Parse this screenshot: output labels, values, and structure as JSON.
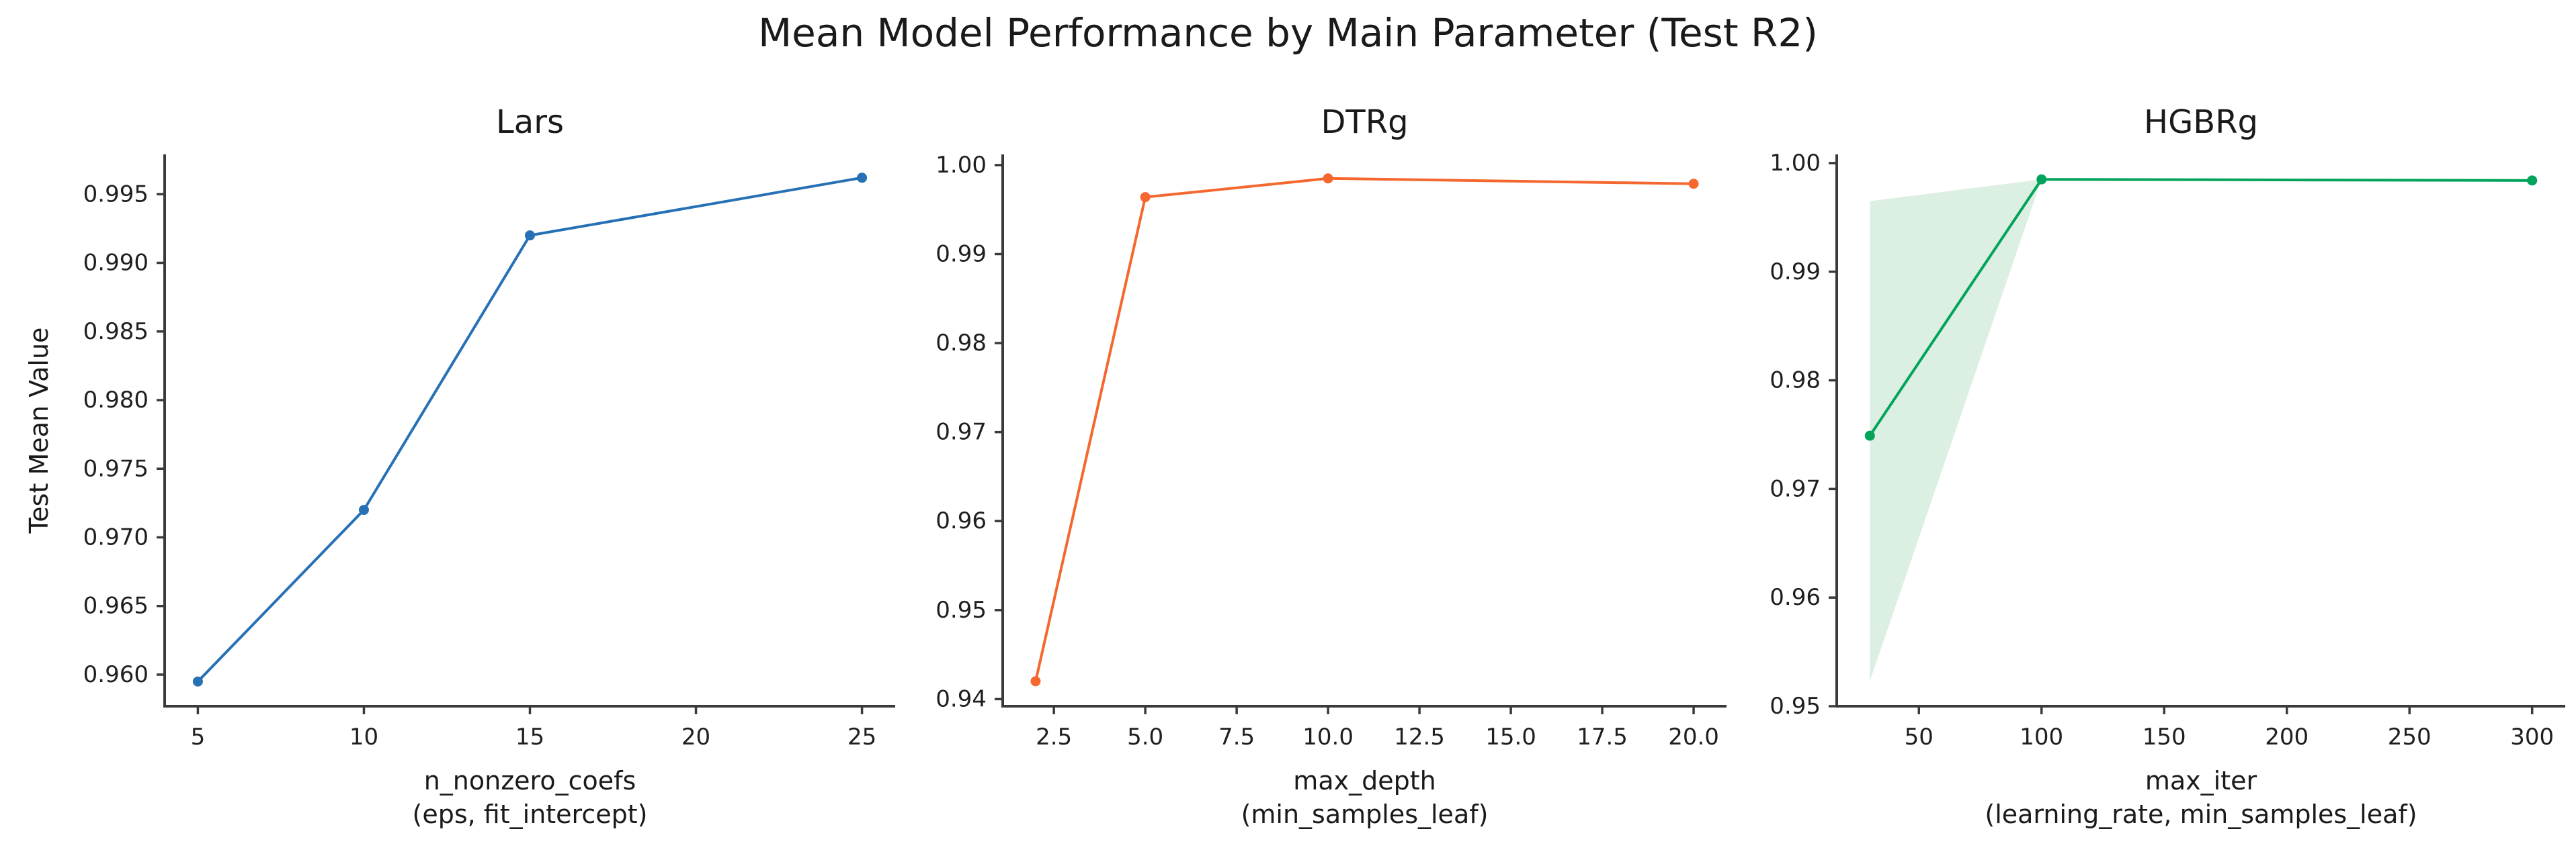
{
  "figure": {
    "suptitle": "Mean Model Performance by Main Parameter (Test R2)",
    "background_color": "#ffffff",
    "text_color": "#1a1a1a",
    "spine_color": "#3a3a3a",
    "grid": "off",
    "legend": "none"
  },
  "chart_data": [
    {
      "type": "line",
      "id": "lars",
      "title": "Lars",
      "color": "#2670b5",
      "x": [
        5,
        10,
        15,
        25
      ],
      "y": [
        0.9595,
        0.972,
        0.992,
        0.9962
      ],
      "xlim": [
        4,
        26
      ],
      "ylim": [
        0.9577,
        0.9979
      ],
      "xticks": [
        5,
        10,
        15,
        20,
        25
      ],
      "xtick_labels": [
        "5",
        "10",
        "15",
        "20",
        "25"
      ],
      "yticks": [
        0.96,
        0.965,
        0.97,
        0.975,
        0.98,
        0.985,
        0.99,
        0.995
      ],
      "ytick_labels": [
        "0.960",
        "0.965",
        "0.970",
        "0.975",
        "0.980",
        "0.985",
        "0.990",
        "0.995"
      ],
      "xlabel": "n_nonzero_coefs",
      "xlabel_sub": "(eps, fit_intercept)",
      "ylabel": "Test Mean Value",
      "band": null
    },
    {
      "type": "line",
      "id": "dtrg",
      "title": "DTRg",
      "color": "#f4682f",
      "x": [
        2,
        5,
        10,
        20
      ],
      "y": [
        0.942,
        0.9964,
        0.9985,
        0.9979
      ],
      "xlim": [
        1.1,
        20.9
      ],
      "ylim": [
        0.9392,
        1.0012
      ],
      "xticks": [
        2.5,
        5.0,
        7.5,
        10.0,
        12.5,
        15.0,
        17.5,
        20.0
      ],
      "xtick_labels": [
        "2.5",
        "5.0",
        "7.5",
        "10.0",
        "12.5",
        "15.0",
        "17.5",
        "20.0"
      ],
      "yticks": [
        0.94,
        0.95,
        0.96,
        0.97,
        0.98,
        0.99,
        1.0
      ],
      "ytick_labels": [
        "0.94",
        "0.95",
        "0.96",
        "0.97",
        "0.98",
        "0.99",
        "1.00"
      ],
      "xlabel": "max_depth",
      "xlabel_sub": "(min_samples_leaf)",
      "ylabel": "",
      "band": null
    },
    {
      "type": "line",
      "id": "hgbrg",
      "title": "HGBRg",
      "color": "#03a35c",
      "x": [
        30,
        100,
        300
      ],
      "y": [
        0.9749,
        0.9985,
        0.9984
      ],
      "xlim": [
        16.5,
        313.5
      ],
      "ylim": [
        0.95,
        1.0008
      ],
      "xticks": [
        50,
        100,
        150,
        200,
        250,
        300
      ],
      "xtick_labels": [
        "50",
        "100",
        "150",
        "200",
        "250",
        "300"
      ],
      "yticks": [
        0.95,
        0.96,
        0.97,
        0.98,
        0.99,
        1.0
      ],
      "ytick_labels": [
        "0.95",
        "0.96",
        "0.97",
        "0.98",
        "0.99",
        "1.00"
      ],
      "xlabel": "max_iter",
      "xlabel_sub": "(learning_rate, min_samples_leaf)",
      "ylabel": "",
      "band": {
        "x": [
          30,
          100
        ],
        "upper": [
          0.9965,
          0.9985
        ],
        "lower": [
          0.9523,
          0.9985
        ],
        "fill": "#dcefe3"
      }
    }
  ]
}
